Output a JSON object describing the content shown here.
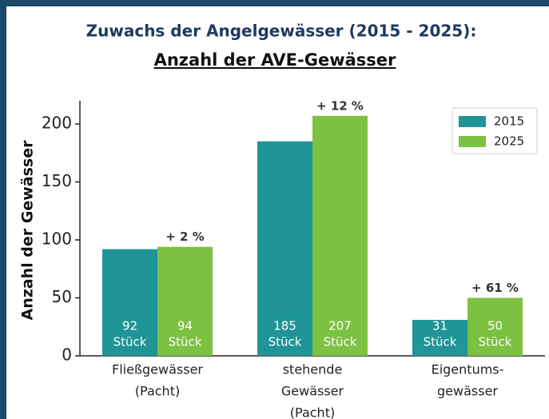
{
  "chart_data": {
    "type": "bar",
    "title": "Zuwachs der Angelgewässer (2015 - 2025):",
    "subtitle": "Anzahl der AVE-Gewässer",
    "y_label": "Anzahl der Gewässer",
    "categories": [
      [
        "Fließgewässer",
        "(Pacht)"
      ],
      [
        "stehende",
        "Gewässer",
        "(Pacht)"
      ],
      [
        "Eigentums-",
        "gewässer"
      ]
    ],
    "series": [
      {
        "name": "2015",
        "color": "#1f9597",
        "values": [
          92,
          185,
          31
        ],
        "value_labels": [
          [
            "92",
            "Stück"
          ],
          [
            "185",
            "Stück"
          ],
          [
            "31",
            "Stück"
          ]
        ]
      },
      {
        "name": "2025",
        "color": "#7cc142",
        "values": [
          94,
          207,
          50
        ],
        "value_labels": [
          [
            "94",
            "Stück"
          ],
          [
            "207",
            "Stück"
          ],
          [
            "50",
            "Stück"
          ]
        ]
      }
    ],
    "annotations": [
      "+ 2 %",
      "+ 12 %",
      "+ 61 %"
    ],
    "ylim": [
      0,
      220
    ],
    "yticks": [
      0,
      50,
      100,
      150,
      200
    ],
    "grid": false,
    "legend": "upper right"
  }
}
